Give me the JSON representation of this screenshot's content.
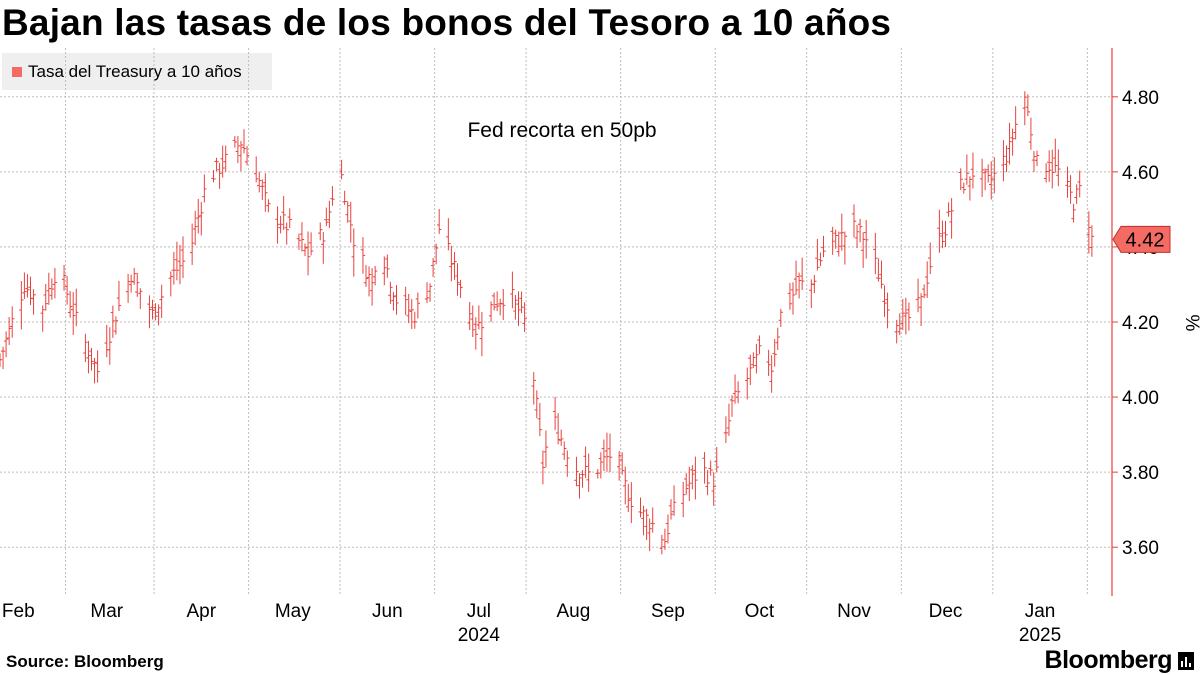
{
  "title": "Bajan las tasas de los bonos del Tesoro a 10 años",
  "source": "Source: Bloomberg",
  "brand": "Bloomberg",
  "colors": {
    "series": "#e8413c",
    "swatch": "#f36b63",
    "grid": "#bdbdbd",
    "label_bg": "#f36b63"
  },
  "chart_data": {
    "type": "ohlc",
    "title": "Bajan las tasas de los bonos del Tesoro a 10 años",
    "unit_label": "%",
    "legend": [
      "Tasa del Treasury a 10 años"
    ],
    "annotation": "Fed recorta en 50pb",
    "last_value_label": "4.42",
    "x_range": [
      0,
      360
    ],
    "ylim": [
      3.47,
      4.93
    ],
    "y_ticks": [
      3.6,
      3.8,
      4.0,
      4.2,
      4.4,
      4.6,
      4.8
    ],
    "y_tick_labels": [
      "3.60",
      "3.80",
      "4.00",
      "4.20",
      "4.40",
      "4.60",
      "4.80"
    ],
    "x_ticks": [
      {
        "pos": 6,
        "label": "Feb"
      },
      {
        "pos": 35,
        "label": "Mar"
      },
      {
        "pos": 66,
        "label": "Apr"
      },
      {
        "pos": 96,
        "label": "May"
      },
      {
        "pos": 127,
        "label": "Jun"
      },
      {
        "pos": 157,
        "label": "Jul"
      },
      {
        "pos": 188,
        "label": "Aug"
      },
      {
        "pos": 219,
        "label": "Sep"
      },
      {
        "pos": 249,
        "label": "Oct"
      },
      {
        "pos": 280,
        "label": "Nov"
      },
      {
        "pos": 310,
        "label": "Dec"
      },
      {
        "pos": 341,
        "label": "Jan"
      }
    ],
    "year_labels": [
      {
        "pos": 157,
        "label": "2024"
      },
      {
        "pos": 341,
        "label": "2025"
      }
    ],
    "anchors": [
      [
        0,
        4.1
      ],
      [
        8,
        4.3
      ],
      [
        14,
        4.24
      ],
      [
        19,
        4.35
      ],
      [
        26,
        4.18
      ],
      [
        32,
        4.07
      ],
      [
        38,
        4.22
      ],
      [
        43,
        4.33
      ],
      [
        50,
        4.22
      ],
      [
        56,
        4.32
      ],
      [
        62,
        4.38
      ],
      [
        68,
        4.58
      ],
      [
        73,
        4.62
      ],
      [
        79,
        4.68
      ],
      [
        84,
        4.6
      ],
      [
        88,
        4.5
      ],
      [
        95,
        4.45
      ],
      [
        101,
        4.38
      ],
      [
        107,
        4.45
      ],
      [
        111,
        4.63
      ],
      [
        116,
        4.42
      ],
      [
        122,
        4.3
      ],
      [
        124,
        4.42
      ],
      [
        130,
        4.26
      ],
      [
        136,
        4.22
      ],
      [
        141,
        4.3
      ],
      [
        144,
        4.45
      ],
      [
        151,
        4.3
      ],
      [
        156,
        4.18
      ],
      [
        162,
        4.25
      ],
      [
        167,
        4.28
      ],
      [
        172,
        4.2
      ],
      [
        175,
        4.05
      ],
      [
        178,
        3.82
      ],
      [
        181,
        3.95
      ],
      [
        185,
        3.87
      ],
      [
        189,
        3.81
      ],
      [
        194,
        3.79
      ],
      [
        198,
        3.83
      ],
      [
        202,
        3.86
      ],
      [
        204,
        3.78
      ],
      [
        208,
        3.71
      ],
      [
        214,
        3.66
      ],
      [
        218,
        3.62
      ],
      [
        220,
        3.68
      ],
      [
        225,
        3.76
      ],
      [
        230,
        3.81
      ],
      [
        234,
        3.78
      ],
      [
        237,
        3.84
      ],
      [
        240,
        3.98
      ],
      [
        245,
        4.05
      ],
      [
        250,
        4.13
      ],
      [
        253,
        4.08
      ],
      [
        256,
        4.22
      ],
      [
        262,
        4.3
      ],
      [
        266,
        4.3
      ],
      [
        270,
        4.39
      ],
      [
        275,
        4.42
      ],
      [
        280,
        4.45
      ],
      [
        284,
        4.42
      ],
      [
        288,
        4.33
      ],
      [
        292,
        4.22
      ],
      [
        297,
        4.2
      ],
      [
        302,
        4.25
      ],
      [
        306,
        4.39
      ],
      [
        310,
        4.45
      ],
      [
        314,
        4.55
      ],
      [
        319,
        4.6
      ],
      [
        324,
        4.57
      ],
      [
        327,
        4.6
      ],
      [
        331,
        4.66
      ],
      [
        334,
        4.76
      ],
      [
        336,
        4.8
      ],
      [
        340,
        4.62
      ],
      [
        344,
        4.62
      ],
      [
        347,
        4.6
      ],
      [
        352,
        4.52
      ],
      [
        354,
        4.55
      ],
      [
        356,
        4.52
      ],
      [
        358,
        4.42
      ]
    ]
  }
}
